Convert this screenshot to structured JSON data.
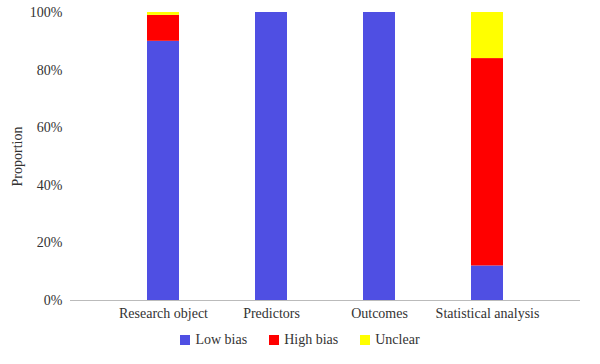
{
  "chart_data": {
    "type": "bar",
    "stacked": true,
    "categories": [
      "Research object",
      "Predictors",
      "Outcomes",
      "Statistical analysis"
    ],
    "series": [
      {
        "name": "Low bias",
        "color": "#4f4fe3",
        "values": [
          90,
          100,
          100,
          12
        ]
      },
      {
        "name": "High bias",
        "color": "#ff0000",
        "values": [
          9,
          0,
          0,
          72
        ]
      },
      {
        "name": "Unclear",
        "color": "#ffff00",
        "values": [
          1,
          0,
          0,
          16
        ]
      }
    ],
    "ylabel": "Proportion",
    "ylim": [
      0,
      100
    ],
    "yticks": [
      {
        "value": 0,
        "label": "0%"
      },
      {
        "value": 20,
        "label": "20%"
      },
      {
        "value": 40,
        "label": "40%"
      },
      {
        "value": 60,
        "label": "60%"
      },
      {
        "value": 80,
        "label": "80%"
      },
      {
        "value": 100,
        "label": "100%"
      }
    ],
    "grid": false,
    "legend": "bottom"
  }
}
